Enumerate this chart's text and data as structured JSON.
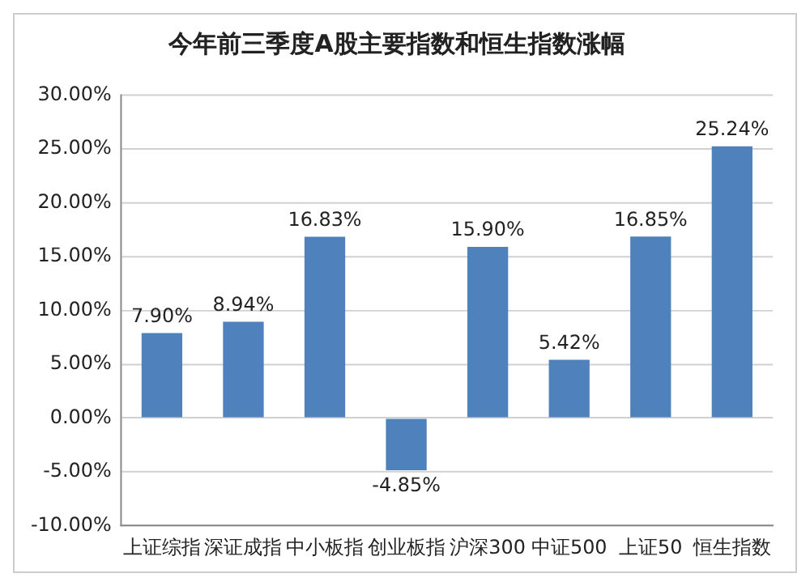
{
  "chart_data": {
    "type": "bar",
    "title": "今年前三季度A股主要指数和恒生指数涨幅",
    "categories": [
      "上证综指",
      "深证成指",
      "中小板指",
      "创业板指",
      "沪深300",
      "中证500",
      "上证50",
      "恒生指数"
    ],
    "values": [
      7.9,
      8.94,
      16.83,
      -4.85,
      15.9,
      5.42,
      16.85,
      25.24
    ],
    "value_labels": [
      "7.90%",
      "8.94%",
      "16.83%",
      "-4.85%",
      "15.90%",
      "5.42%",
      "16.85%",
      "25.24%"
    ],
    "color": "#4f81bd",
    "ylim": [
      -10,
      30
    ],
    "yticks": [
      {
        "value": -10,
        "label": "-10.00%"
      },
      {
        "value": -5,
        "label": "-5.00%"
      },
      {
        "value": 0,
        "label": "0.00%"
      },
      {
        "value": 5,
        "label": "5.00%"
      },
      {
        "value": 10,
        "label": "10.00%"
      },
      {
        "value": 15,
        "label": "15.00%"
      },
      {
        "value": 20,
        "label": "20.00%"
      },
      {
        "value": 25,
        "label": "25.00%"
      },
      {
        "value": 30,
        "label": "30.00%"
      }
    ],
    "grid": "y",
    "legend": false
  }
}
